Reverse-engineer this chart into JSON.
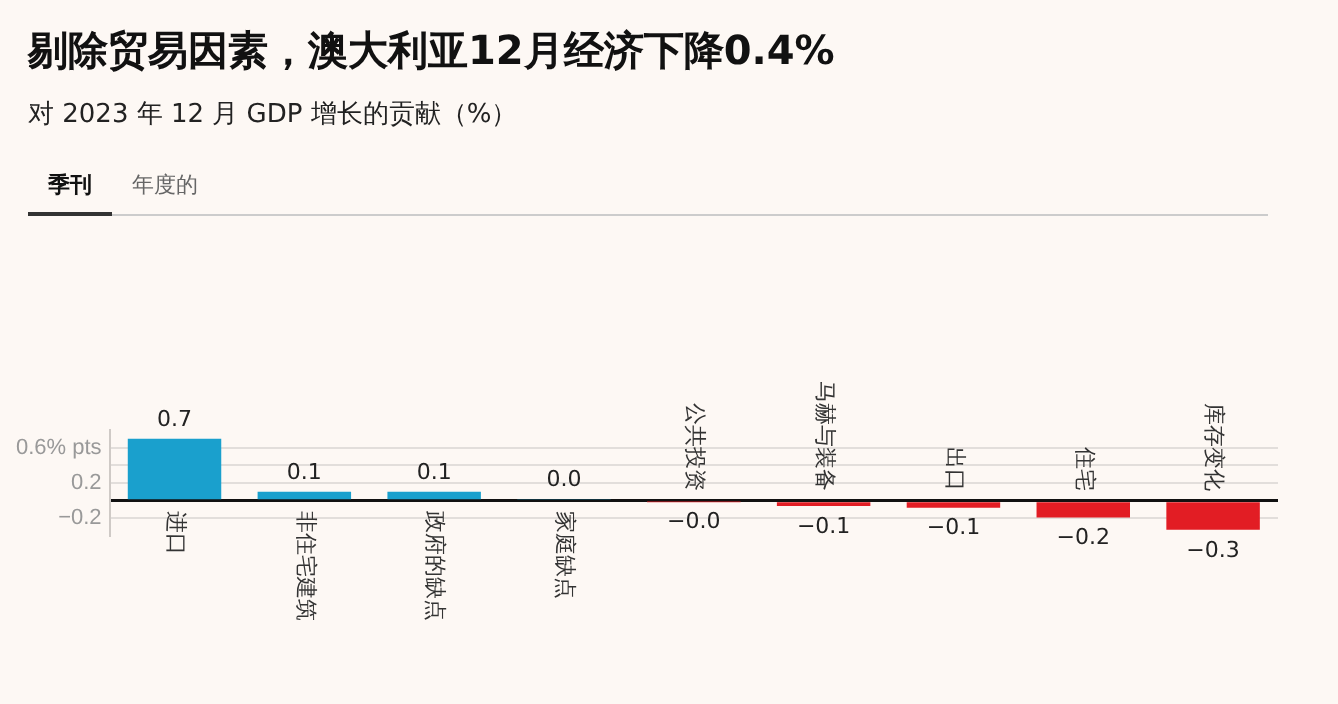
{
  "chart_data": {
    "type": "bar",
    "title": "剔除贸易因素，澳大利亚12月经济下降0.4%",
    "subtitle": "对 2023 年 12 月 GDP 增长的贡献（%）",
    "annotations": [
      "季刊",
      "年度的"
    ],
    "categories": [
      "进口",
      "非住宅建筑",
      "政府的缺点",
      "家庭缺点",
      "公共投资",
      "马赫与装备",
      "出口",
      "住宅",
      "库存变化"
    ],
    "values": [
      0.7,
      0.1,
      0.1,
      0.02,
      -0.01,
      -0.06,
      -0.08,
      -0.19,
      -0.33
    ],
    "value_labels": [
      "0.7",
      "0.1",
      "0.1",
      "0.0",
      "−0.0",
      "−0.1",
      "−0.1",
      "−0.2",
      "−0.3"
    ],
    "colors": [
      "#1aa0cd",
      "#1aa0cd",
      "#1aa0cd",
      "#1aa0cd",
      "#e21d24",
      "#e21d24",
      "#e21d24",
      "#e21d24",
      "#e21d24"
    ],
    "ylim": [
      -0.4,
      0.8
    ],
    "yticks": [
      {
        "value": -0.2,
        "label": "−0.2"
      },
      {
        "value": 0,
        "label": null
      },
      {
        "value": 0.2,
        "label": "0.2"
      },
      {
        "value": 0.4,
        "label": null
      },
      {
        "value": 0.6,
        "label": "0.6% pts"
      }
    ],
    "grid": "y",
    "legend": false
  }
}
